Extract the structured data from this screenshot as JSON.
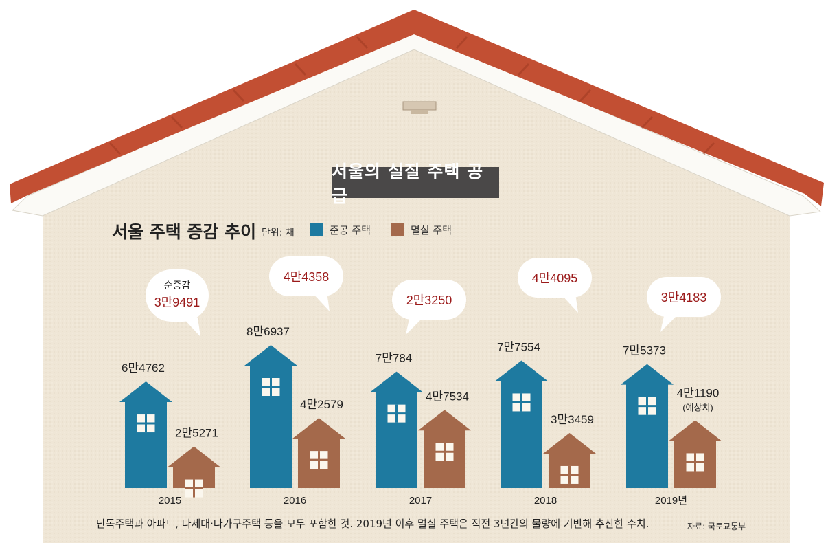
{
  "header": {
    "title": "서울의 실질 주택 공급"
  },
  "chart_data": {
    "type": "bar",
    "title": "서울 주택 증감 추이",
    "unit": "단위: 채",
    "categories": [
      "2015",
      "2016",
      "2017",
      "2018",
      "2019년"
    ],
    "series": [
      {
        "name": "준공 주택",
        "color": "#1e7aa0",
        "values": [
          64762,
          86937,
          70784,
          77554,
          75373
        ],
        "labels": [
          "6만4762",
          "8만6937",
          "7만784",
          "7만7554",
          "7만5373"
        ]
      },
      {
        "name": "멸실 주택",
        "color": "#a4694b",
        "values": [
          25271,
          42579,
          47534,
          33459,
          41190
        ],
        "labels": [
          "2만5271",
          "4만2579",
          "4만7534",
          "3만3459",
          "4만1190"
        ]
      }
    ],
    "net_increase": {
      "label": "순증감",
      "values": [
        39491,
        44358,
        23250,
        44095,
        34183
      ],
      "labels": [
        "3만9491",
        "4만4358",
        "2만3250",
        "4만4095",
        "3만4183"
      ]
    },
    "annotations": [
      "(예상치)"
    ],
    "footnote": "단독주택과 아파트, 다세대·다가구주택 등을 모두 포함한 것. 2019년 이후 멸실 주택은 직전 3년간의 물량에 기반해 추산한 수치.",
    "source": "자료: 국토교통부"
  }
}
